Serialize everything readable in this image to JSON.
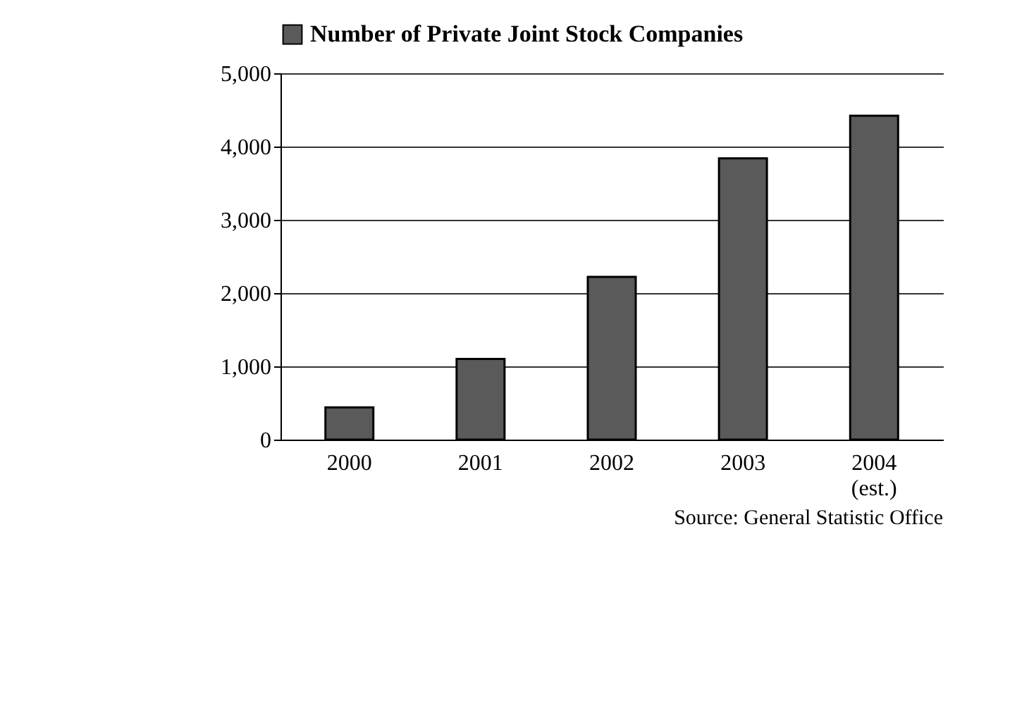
{
  "chart_data": {
    "type": "bar",
    "categories": [
      "2000",
      "2001",
      "2002",
      "2003",
      "2004 (est.)"
    ],
    "series": [
      {
        "name": "Number of Private Joint Stock Companies",
        "color": "#5a5a5a",
        "values": [
          440,
          1100,
          2220,
          3840,
          4420
        ]
      }
    ],
    "ylim": [
      0,
      5000
    ],
    "yticks": [
      0,
      {
        "value": 1000,
        "label": "1,000"
      },
      {
        "value": 2000,
        "label": "2,000"
      },
      {
        "value": 3000,
        "label": "3,000"
      },
      {
        "value": 4000,
        "label": "4,000"
      },
      {
        "value": 5000,
        "label": "5,000"
      }
    ],
    "grid": "y",
    "legend": "top",
    "annotations": [
      "Source: General Statistic Office"
    ]
  }
}
